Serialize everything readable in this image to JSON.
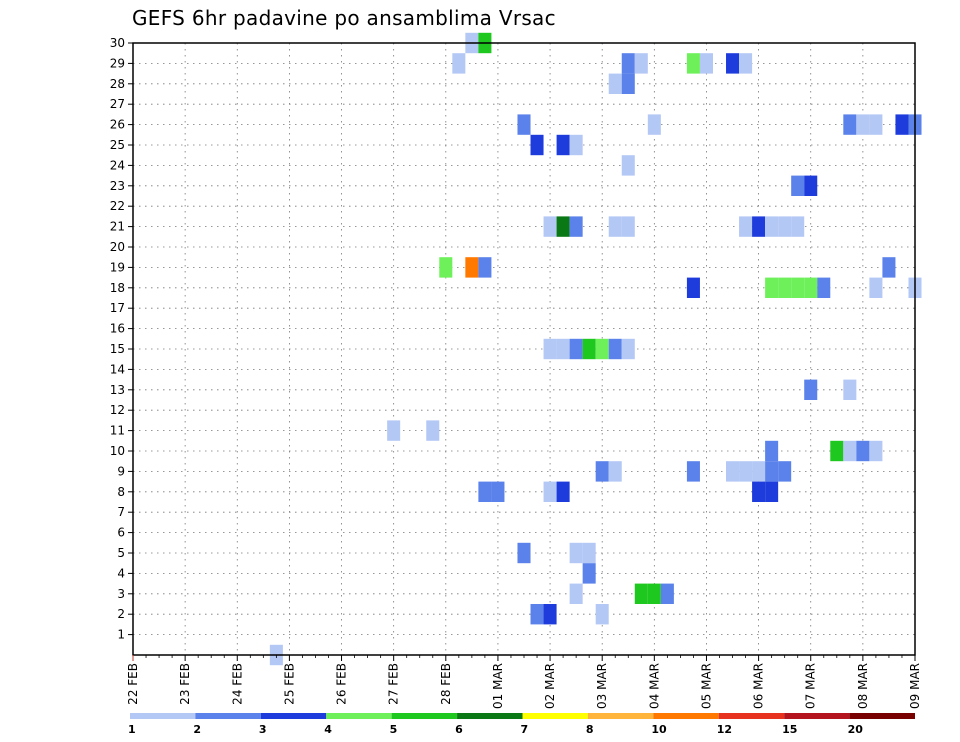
{
  "chart_data": {
    "type": "heatmap",
    "title": "GEFS 6hr padavine po ansamblima Vrsac",
    "xlabel": "",
    "ylabel": "",
    "x_ticks": [
      "22 FEB",
      "23 FEB",
      "24 FEB",
      "25 FEB",
      "26 FEB",
      "27 FEB",
      "28 FEB",
      "01 MAR",
      "02 MAR",
      "03 MAR",
      "04 MAR",
      "05 MAR",
      "06 MAR",
      "07 MAR",
      "08 MAR",
      "09 MAR"
    ],
    "x_step": "6hr",
    "y_ticks": [
      1,
      2,
      3,
      4,
      5,
      6,
      7,
      8,
      9,
      10,
      11,
      12,
      13,
      14,
      15,
      16,
      17,
      18,
      19,
      20,
      21,
      22,
      23,
      24,
      25,
      26,
      27,
      28,
      29,
      30
    ],
    "grid": true,
    "colorbar": {
      "labels": [
        "1",
        "2",
        "3",
        "4",
        "5",
        "6",
        "7",
        "8",
        "10",
        "12",
        "15",
        "20"
      ],
      "colors": [
        "#b4c8f5",
        "#5a82ea",
        "#1e3cdc",
        "#6ef05a",
        "#1ec81e",
        "#0a7814",
        "#ffff00",
        "#ffb43c",
        "#ff7800",
        "#e6321e",
        "#b4141e",
        "#780000"
      ]
    },
    "cells": [
      {
        "member": 30,
        "time": "28 FEB 12",
        "level": 1
      },
      {
        "member": 30,
        "time": "28 FEB 18",
        "level": 5
      },
      {
        "member": 29,
        "time": "28 FEB 06",
        "level": 1
      },
      {
        "member": 29,
        "time": "03 MAR 12",
        "level": 2
      },
      {
        "member": 29,
        "time": "03 MAR 18",
        "level": 1
      },
      {
        "member": 29,
        "time": "04 MAR 18",
        "level": 4
      },
      {
        "member": 29,
        "time": "05 MAR 00",
        "level": 1
      },
      {
        "member": 29,
        "time": "05 MAR 12",
        "level": 3
      },
      {
        "member": 29,
        "time": "05 MAR 18",
        "level": 1
      },
      {
        "member": 28,
        "time": "03 MAR 06",
        "level": 1
      },
      {
        "member": 28,
        "time": "03 MAR 12",
        "level": 2
      },
      {
        "member": 26,
        "time": "01 MAR 12",
        "level": 2
      },
      {
        "member": 26,
        "time": "04 MAR 00",
        "level": 1
      },
      {
        "member": 26,
        "time": "07 MAR 18",
        "level": 2
      },
      {
        "member": 26,
        "time": "08 MAR 00",
        "level": 1
      },
      {
        "member": 26,
        "time": "08 MAR 06",
        "level": 1
      },
      {
        "member": 26,
        "time": "08 MAR 18",
        "level": 3
      },
      {
        "member": 26,
        "time": "09 MAR 00",
        "level": 2
      },
      {
        "member": 25,
        "time": "01 MAR 18",
        "level": 3
      },
      {
        "member": 25,
        "time": "02 MAR 06",
        "level": 3
      },
      {
        "member": 25,
        "time": "02 MAR 12",
        "level": 1
      },
      {
        "member": 24,
        "time": "03 MAR 12",
        "level": 1
      },
      {
        "member": 23,
        "time": "06 MAR 18",
        "level": 2
      },
      {
        "member": 23,
        "time": "07 MAR 00",
        "level": 3
      },
      {
        "member": 21,
        "time": "02 MAR 00",
        "level": 1
      },
      {
        "member": 21,
        "time": "02 MAR 06",
        "level": 6
      },
      {
        "member": 21,
        "time": "02 MAR 12",
        "level": 2
      },
      {
        "member": 21,
        "time": "03 MAR 06",
        "level": 1
      },
      {
        "member": 21,
        "time": "03 MAR 12",
        "level": 1
      },
      {
        "member": 21,
        "time": "05 MAR 18",
        "level": 1
      },
      {
        "member": 21,
        "time": "06 MAR 00",
        "level": 3
      },
      {
        "member": 21,
        "time": "06 MAR 06",
        "level": 1
      },
      {
        "member": 21,
        "time": "06 MAR 12",
        "level": 1
      },
      {
        "member": 21,
        "time": "06 MAR 18",
        "level": 1
      },
      {
        "member": 19,
        "time": "28 FEB 00",
        "level": 4
      },
      {
        "member": 19,
        "time": "28 FEB 12",
        "level": 10
      },
      {
        "member": 19,
        "time": "28 FEB 18",
        "level": 2
      },
      {
        "member": 19,
        "time": "08 MAR 12",
        "level": 2
      },
      {
        "member": 18,
        "time": "04 MAR 18",
        "level": 3
      },
      {
        "member": 18,
        "time": "06 MAR 06",
        "level": 4
      },
      {
        "member": 18,
        "time": "06 MAR 12",
        "level": 4
      },
      {
        "member": 18,
        "time": "06 MAR 18",
        "level": 4
      },
      {
        "member": 18,
        "time": "07 MAR 00",
        "level": 4
      },
      {
        "member": 18,
        "time": "07 MAR 06",
        "level": 2
      },
      {
        "member": 18,
        "time": "08 MAR 06",
        "level": 1
      },
      {
        "member": 18,
        "time": "09 MAR 00",
        "level": 1
      },
      {
        "member": 15,
        "time": "02 MAR 00",
        "level": 1
      },
      {
        "member": 15,
        "time": "02 MAR 06",
        "level": 1
      },
      {
        "member": 15,
        "time": "02 MAR 12",
        "level": 2
      },
      {
        "member": 15,
        "time": "02 MAR 18",
        "level": 5
      },
      {
        "member": 15,
        "time": "03 MAR 00",
        "level": 4
      },
      {
        "member": 15,
        "time": "03 MAR 06",
        "level": 2
      },
      {
        "member": 15,
        "time": "03 MAR 12",
        "level": 1
      },
      {
        "member": 13,
        "time": "07 MAR 00",
        "level": 2
      },
      {
        "member": 13,
        "time": "07 MAR 18",
        "level": 1
      },
      {
        "member": 11,
        "time": "27 FEB 00",
        "level": 1
      },
      {
        "member": 11,
        "time": "27 FEB 18",
        "level": 1
      },
      {
        "member": 10,
        "time": "06 MAR 06",
        "level": 2
      },
      {
        "member": 10,
        "time": "07 MAR 12",
        "level": 5
      },
      {
        "member": 10,
        "time": "07 MAR 18",
        "level": 1
      },
      {
        "member": 10,
        "time": "08 MAR 00",
        "level": 2
      },
      {
        "member": 10,
        "time": "08 MAR 06",
        "level": 1
      },
      {
        "member": 9,
        "time": "03 MAR 00",
        "level": 2
      },
      {
        "member": 9,
        "time": "03 MAR 06",
        "level": 1
      },
      {
        "member": 9,
        "time": "04 MAR 18",
        "level": 2
      },
      {
        "member": 9,
        "time": "05 MAR 12",
        "level": 1
      },
      {
        "member": 9,
        "time": "05 MAR 18",
        "level": 1
      },
      {
        "member": 9,
        "time": "06 MAR 00",
        "level": 1
      },
      {
        "member": 9,
        "time": "06 MAR 06",
        "level": 2
      },
      {
        "member": 9,
        "time": "06 MAR 12",
        "level": 2
      },
      {
        "member": 8,
        "time": "28 FEB 18",
        "level": 2
      },
      {
        "member": 8,
        "time": "01 MAR 00",
        "level": 2
      },
      {
        "member": 8,
        "time": "02 MAR 00",
        "level": 1
      },
      {
        "member": 8,
        "time": "02 MAR 06",
        "level": 3
      },
      {
        "member": 8,
        "time": "06 MAR 00",
        "level": 3
      },
      {
        "member": 8,
        "time": "06 MAR 06",
        "level": 3
      },
      {
        "member": 5,
        "time": "01 MAR 12",
        "level": 2
      },
      {
        "member": 5,
        "time": "02 MAR 12",
        "level": 1
      },
      {
        "member": 5,
        "time": "02 MAR 18",
        "level": 1
      },
      {
        "member": 4,
        "time": "02 MAR 18",
        "level": 2
      },
      {
        "member": 3,
        "time": "02 MAR 12",
        "level": 1
      },
      {
        "member": 3,
        "time": "03 MAR 18",
        "level": 5
      },
      {
        "member": 3,
        "time": "04 MAR 00",
        "level": 5
      },
      {
        "member": 3,
        "time": "04 MAR 06",
        "level": 2
      },
      {
        "member": 2,
        "time": "01 MAR 18",
        "level": 2
      },
      {
        "member": 2,
        "time": "02 MAR 00",
        "level": 3
      },
      {
        "member": 2,
        "time": "03 MAR 00",
        "level": 1
      },
      {
        "member": 0,
        "time": "24 FEB 18",
        "level": 1
      }
    ]
  }
}
